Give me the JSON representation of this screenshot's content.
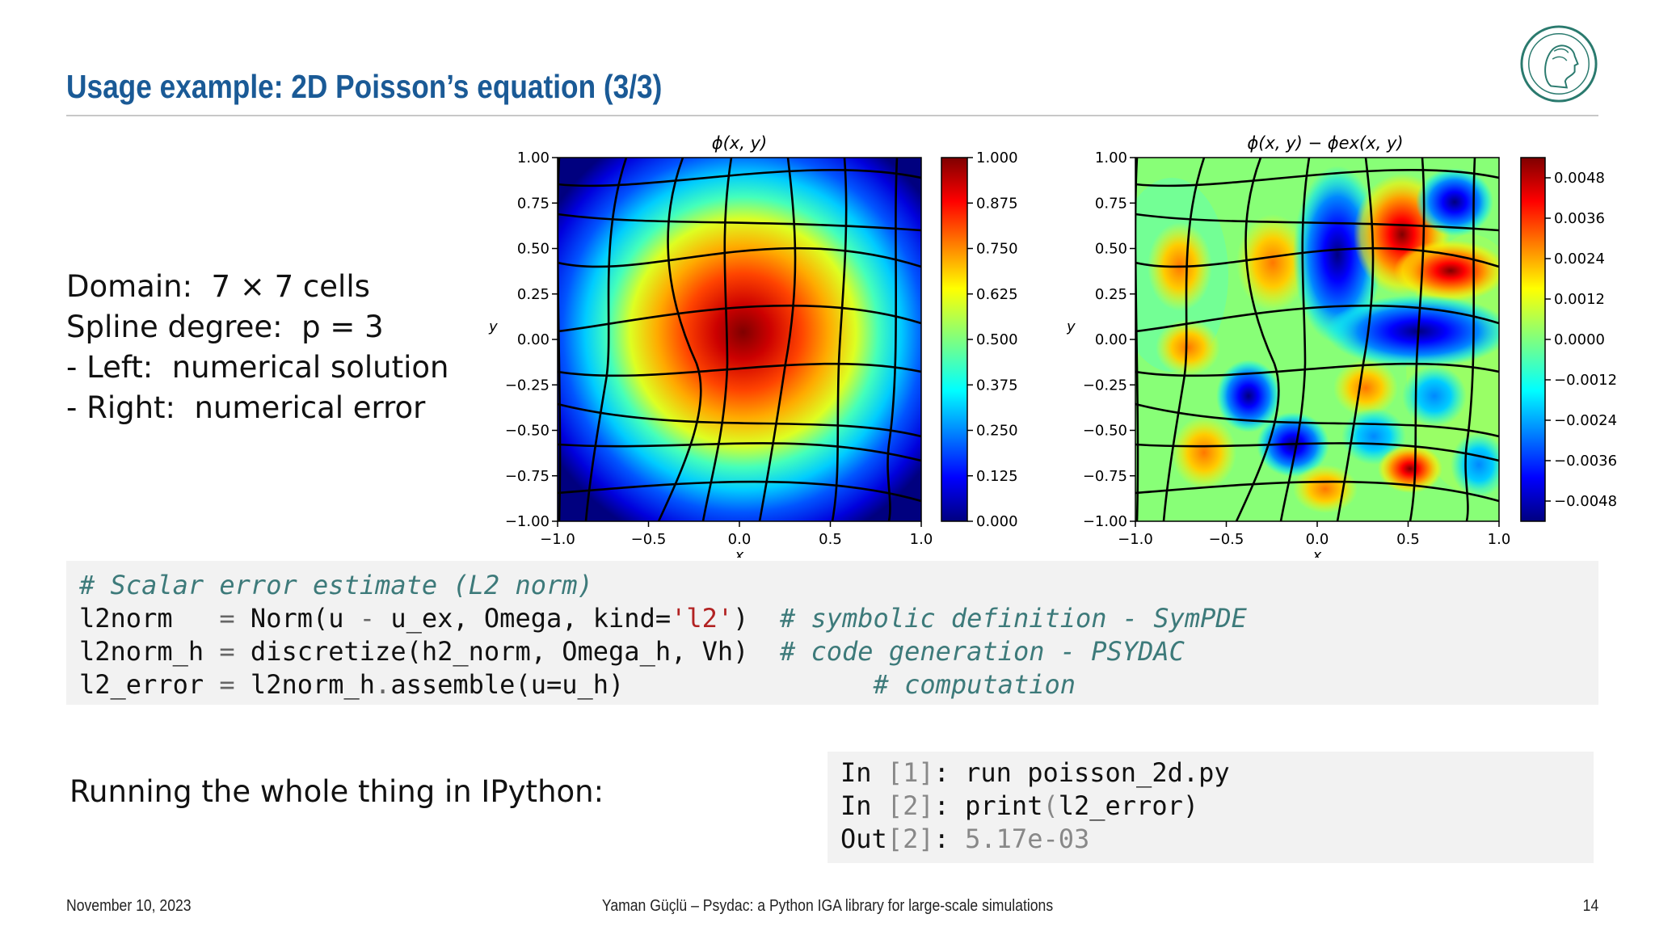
{
  "slide": {
    "title": "Usage example: 2D Poisson’s equation (3/3)",
    "summary_lines": [
      "Domain:  7 × 7 cells",
      "Spline degree:  p = 3",
      "- Left:  numerical solution",
      "- Right:  numerical error"
    ],
    "running_label": "Running the whole thing in IPython:",
    "footer_date": "November 10, 2023",
    "footer_center": "Yaman Güçlü – Psydac: a Python IGA library for large-scale simulations",
    "footer_page": "14"
  },
  "code_block": {
    "comment_line": "# Scalar error estimate (L2 norm)",
    "lines": [
      {
        "lhs": "l2norm  ",
        "op": " = ",
        "pre": "Norm(u ",
        "minus": "-",
        "mid": " u_ex, Omega, kind=",
        "str": "'l2'",
        "post": ")",
        "pad": "  ",
        "comment": "# symbolic definition - SymPDE"
      },
      {
        "lhs": "l2norm_h",
        "op": " = ",
        "pre": "discretize(h2_norm, Omega_h, Vh)",
        "minus": "",
        "mid": "",
        "str": "",
        "post": "",
        "pad": "  ",
        "comment": "# code generation - PSYDAC"
      },
      {
        "lhs": "l2_error",
        "op": " = ",
        "pre": "l2norm_h",
        "minus": ".",
        "mid": "assemble(u=u_h)",
        "str": "",
        "post": "",
        "pad": "                ",
        "comment": "# computation"
      }
    ]
  },
  "ipython": {
    "lines": [
      {
        "prompt": "In",
        "num": " [1]",
        "sep": ": ",
        "cmd": "run poisson_2d.py",
        "cmd2": "",
        "cmd3": ""
      },
      {
        "prompt": "In",
        "num": " [2]",
        "sep": ": ",
        "cmd": "print",
        "cmd2": "(",
        "cmd3": "l2_error)"
      },
      {
        "prompt": "Out",
        "num": "[2]",
        "sep": ": ",
        "cmd": "5.17e-03",
        "cmd2": "",
        "cmd3": ""
      }
    ]
  },
  "chart_data": [
    {
      "type": "heatmap",
      "title": "ϕ(x, y)",
      "xlabel": "x",
      "ylabel": "y",
      "xlim": [
        -1.0,
        1.0
      ],
      "ylim": [
        -1.0,
        1.0
      ],
      "x_ticks": [
        "−1.0",
        "−0.5",
        "0.0",
        "0.5",
        "1.0"
      ],
      "y_ticks": [
        "1.00",
        "0.75",
        "0.50",
        "0.25",
        "0.00",
        "−0.25",
        "−0.50",
        "−0.75",
        "−1.00"
      ],
      "colorbar_ticks": [
        "1.000",
        "0.875",
        "0.750",
        "0.625",
        "0.500",
        "0.375",
        "0.250",
        "0.125",
        "0.000"
      ],
      "colorbar_range": [
        0.0,
        1.0
      ],
      "colormap": "jet",
      "mesh_overlay": "7 × 7 cells",
      "peak": {
        "x": 0.0,
        "y": 0.0,
        "value": 1.0
      }
    },
    {
      "type": "heatmap",
      "title": "ϕ(x, y) − ϕex(x, y)",
      "xlabel": "x",
      "ylabel": "y",
      "xlim": [
        -1.0,
        1.0
      ],
      "ylim": [
        -1.0,
        1.0
      ],
      "x_ticks": [
        "−1.0",
        "−0.5",
        "0.0",
        "0.5",
        "1.0"
      ],
      "y_ticks": [
        "1.00",
        "0.75",
        "0.50",
        "0.25",
        "0.00",
        "−0.25",
        "−0.50",
        "−0.75",
        "−1.00"
      ],
      "colorbar_ticks": [
        "0.0048",
        "0.0036",
        "0.0024",
        "0.0012",
        "0.0000",
        "−0.0012",
        "−0.0024",
        "−0.0036",
        "−0.0048"
      ],
      "colorbar_range": [
        -0.0054,
        0.0054
      ],
      "colormap": "jet",
      "mesh_overlay": "7 × 7 cells"
    }
  ]
}
